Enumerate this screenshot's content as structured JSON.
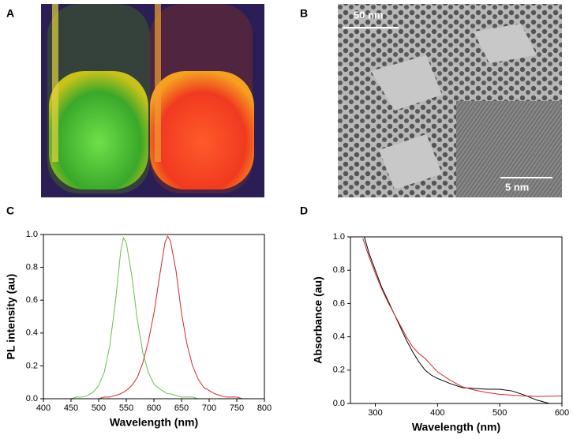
{
  "panels": {
    "a": {
      "label": "A"
    },
    "b": {
      "label": "B",
      "scale_labels": [
        "50 nm",
        "5 nm"
      ]
    }
  },
  "chart_data": [
    {
      "type": "line",
      "panel_label": "C",
      "xlabel": "Wavelength (nm)",
      "ylabel": "PL intensity (au)",
      "xlim": [
        400,
        800
      ],
      "xticks": [
        400,
        450,
        500,
        550,
        600,
        650,
        700,
        750,
        800
      ],
      "ylim": [
        0,
        1
      ],
      "yticks": [
        {
          "value": 0,
          "label": "0.0"
        },
        0.2,
        0.4,
        0.6,
        0.8,
        {
          "value": 1,
          "label": "1.0"
        }
      ],
      "x": [
        450,
        460,
        470,
        480,
        490,
        500,
        510,
        520,
        530,
        540,
        545,
        550,
        560,
        570,
        580,
        590,
        600,
        610,
        620,
        625,
        630,
        640,
        650,
        660,
        670,
        680,
        690,
        700,
        710,
        720,
        730,
        740,
        750,
        760,
        770,
        780,
        790,
        800
      ],
      "series": [
        {
          "color": "#6cbf4a",
          "values": [
            0,
            0.01,
            0.01,
            0.02,
            0.04,
            0.08,
            0.16,
            0.32,
            0.58,
            0.9,
            0.98,
            0.95,
            0.75,
            0.48,
            0.28,
            0.16,
            0.09,
            0.06,
            0.04,
            0.03,
            0.03,
            0.02,
            0.01,
            0.01,
            0.01,
            0,
            0,
            0,
            0,
            0,
            0,
            0,
            0,
            0,
            0,
            0,
            0,
            0
          ]
        },
        {
          "color": "#d0282a",
          "values": [
            0,
            0,
            0,
            0,
            0,
            0,
            0.01,
            0.01,
            0.02,
            0.03,
            0.04,
            0.05,
            0.08,
            0.13,
            0.22,
            0.35,
            0.52,
            0.74,
            0.95,
            0.99,
            0.96,
            0.78,
            0.52,
            0.33,
            0.2,
            0.12,
            0.07,
            0.05,
            0.03,
            0.02,
            0.01,
            0.01,
            0.01,
            0,
            0,
            0,
            0,
            0
          ]
        }
      ]
    },
    {
      "type": "line",
      "panel_label": "D",
      "xlabel": "Wavelength (nm)",
      "ylabel": "Absorbance (au)",
      "xlim": [
        260,
        600
      ],
      "xticks": [
        300,
        400,
        500,
        600
      ],
      "ylim": [
        0,
        1
      ],
      "yticks": [
        {
          "value": 0,
          "label": "0.0"
        },
        0.2,
        0.4,
        0.6,
        0.8,
        {
          "value": 1,
          "label": "1.0"
        }
      ],
      "x": [
        280,
        290,
        300,
        310,
        320,
        330,
        340,
        350,
        360,
        370,
        380,
        390,
        400,
        420,
        440,
        460,
        480,
        500,
        520,
        540,
        560,
        580,
        600
      ],
      "series": [
        {
          "color": "#000000",
          "values": [
            1.03,
            0.9,
            0.8,
            0.7,
            0.62,
            0.54,
            0.46,
            0.38,
            0.31,
            0.25,
            0.2,
            0.17,
            0.15,
            0.12,
            0.095,
            0.09,
            0.085,
            0.085,
            0.075,
            0.05,
            0.02,
            0,
            null
          ]
        },
        {
          "color": "#d0282a",
          "values": [
            0.99,
            0.88,
            0.78,
            0.69,
            0.61,
            0.54,
            0.47,
            0.4,
            0.34,
            0.3,
            0.27,
            0.23,
            0.19,
            0.14,
            0.1,
            0.08,
            0.065,
            0.055,
            0.05,
            0.045,
            0.042,
            0.043,
            0.045
          ]
        }
      ]
    }
  ]
}
